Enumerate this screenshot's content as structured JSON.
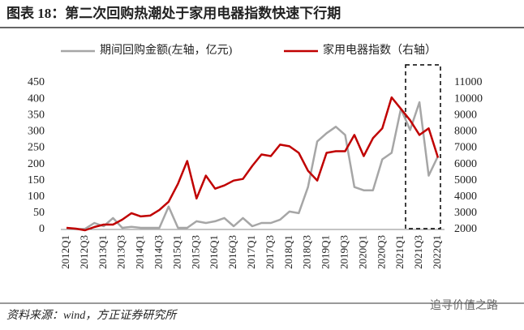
{
  "chart_data": {
    "type": "line",
    "title": "图表 18：第二次回购热潮处于家用电器指数快速下行期",
    "source": "资料来源：wind，方正证券研究所",
    "watermark": "追寻价值之路",
    "categories": [
      "2012Q1",
      null,
      "2012Q3",
      null,
      "2013Q1",
      null,
      "2013Q3",
      null,
      "2014Q1",
      null,
      "2014Q3",
      null,
      "2015Q1",
      null,
      "2015Q3",
      null,
      "2016Q1",
      null,
      "2016Q3",
      null,
      "2017Q1",
      null,
      "2017Q3",
      null,
      "2018Q1",
      null,
      "2018Q3",
      null,
      "2019Q1",
      null,
      "2019Q3",
      null,
      "2020Q1",
      null,
      "2020Q3",
      null,
      "2021Q1",
      null,
      "2021Q3",
      null,
      "2022Q1"
    ],
    "series": [
      {
        "name": "期间回购金额(左轴，亿元)",
        "color": "#a6a6a6",
        "axis": "y",
        "values": [
          2,
          1,
          2,
          20,
          10,
          35,
          5,
          8,
          5,
          5,
          5,
          70,
          5,
          5,
          25,
          20,
          25,
          35,
          10,
          35,
          10,
          20,
          20,
          30,
          55,
          50,
          130,
          270,
          295,
          315,
          290,
          130,
          120,
          120,
          215,
          235,
          370,
          305,
          390,
          165,
          225
        ]
      },
      {
        "name": "家用电器指数（右轴）",
        "color": "#c00000",
        "axis": "y2",
        "values": [
          2100,
          2050,
          1950,
          2150,
          2300,
          2300,
          2600,
          3000,
          2800,
          2850,
          3200,
          3700,
          4800,
          6200,
          3900,
          5300,
          4500,
          4700,
          5000,
          5100,
          5900,
          6600,
          6500,
          7200,
          7100,
          6700,
          5600,
          5000,
          6700,
          6800,
          6800,
          7800,
          6500,
          7600,
          8200,
          10100,
          9400,
          8700,
          7800,
          8200,
          6400
        ]
      }
    ],
    "ylim": [
      0,
      450
    ],
    "yticks": [
      0,
      50,
      100,
      150,
      200,
      250,
      300,
      350,
      400,
      450
    ],
    "y2lim": [
      2000,
      11000
    ],
    "y2ticks": [
      2000,
      3000,
      4000,
      5000,
      6000,
      7000,
      8000,
      9000,
      10000,
      11000
    ]
  }
}
